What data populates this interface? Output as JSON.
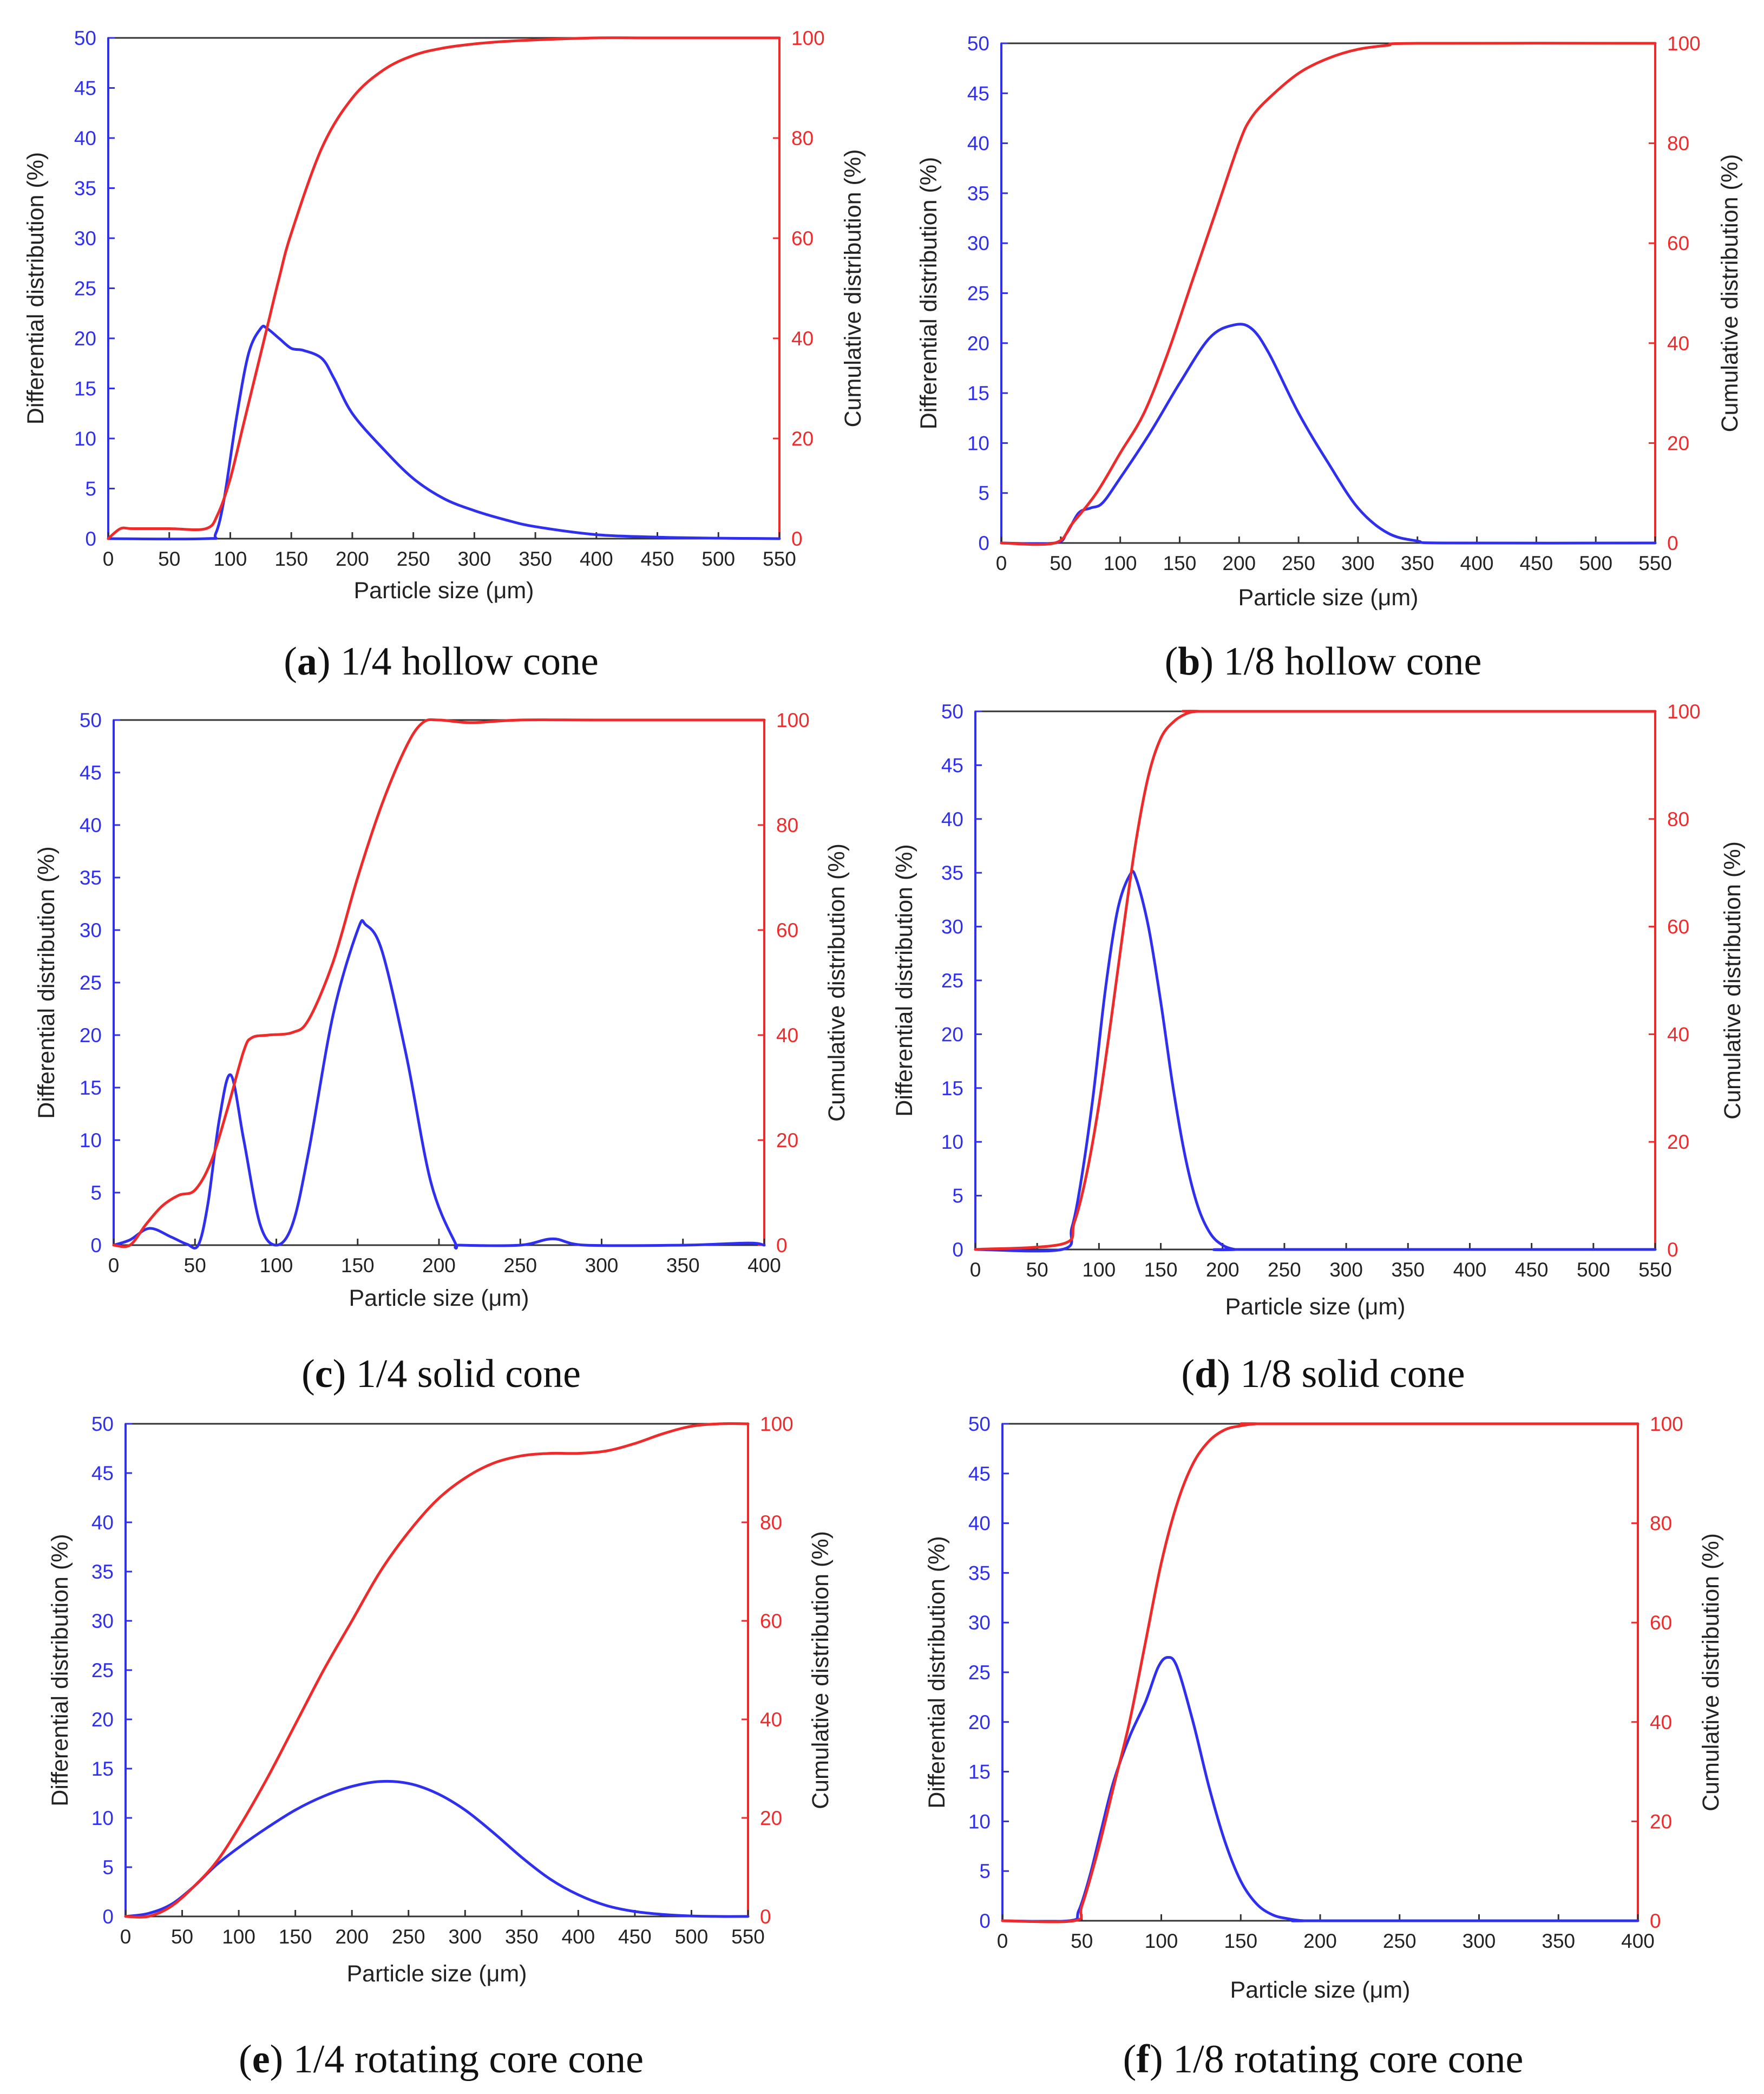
{
  "colors": {
    "differential": "#2f2ff0",
    "cumulative": "#ee2a2a",
    "frame": "#333333",
    "text": "#222222"
  },
  "chart_data": [
    {
      "id": "a",
      "type": "line",
      "caption_letter": "a",
      "caption_text": " 1/4 hollow cone",
      "xlabel": "Particle size (μm)",
      "ylabel_left": "Differential distribution (%)",
      "ylabel_right": "Cumulative distribution (%)",
      "xlim": [
        0,
        550
      ],
      "ylim_left": [
        0,
        50
      ],
      "ylim_right": [
        0,
        100
      ],
      "xticks": [
        0,
        50,
        100,
        150,
        200,
        250,
        300,
        350,
        400,
        450,
        500,
        550
      ],
      "yticks_left": [
        0,
        5,
        10,
        15,
        20,
        25,
        30,
        35,
        40,
        45,
        50
      ],
      "yticks_right": [
        0,
        20,
        40,
        60,
        80,
        100
      ],
      "series": [
        {
          "name": "Differential distribution",
          "axis": "left",
          "x": [
            0,
            80,
            88,
            95,
            105,
            115,
            125,
            130,
            140,
            150,
            160,
            175,
            185,
            200,
            225,
            250,
            275,
            300,
            325,
            350,
            400,
            450,
            500,
            550
          ],
          "y": [
            0,
            0,
            0.5,
            4,
            12,
            18.5,
            21,
            21,
            20,
            19,
            18.8,
            18,
            16,
            12.5,
            9,
            6,
            4,
            2.8,
            1.9,
            1.2,
            0.4,
            0.15,
            0.05,
            0
          ]
        },
        {
          "name": "Cumulative distribution",
          "axis": "right",
          "x": [
            0,
            10,
            20,
            50,
            80,
            90,
            100,
            110,
            120,
            130,
            140,
            150,
            175,
            200,
            225,
            250,
            275,
            300,
            325,
            350,
            400,
            450,
            550
          ],
          "y": [
            0,
            2,
            2,
            2,
            2,
            5,
            12,
            22,
            32,
            42,
            52,
            61,
            78,
            88,
            93.5,
            96.5,
            98,
            98.8,
            99.3,
            99.6,
            100,
            100,
            100
          ]
        }
      ]
    },
    {
      "id": "b",
      "type": "line",
      "caption_letter": "b",
      "caption_text": " 1/8 hollow cone",
      "xlabel": "Particle size (μm)",
      "ylabel_left": "Differential distribution (%)",
      "ylabel_right": "Cumulative distribution (%)",
      "xlim": [
        0,
        550
      ],
      "ylim_left": [
        0,
        50
      ],
      "ylim_right": [
        0,
        100
      ],
      "xticks": [
        0,
        50,
        100,
        150,
        200,
        250,
        300,
        350,
        400,
        450,
        500,
        550
      ],
      "yticks_left": [
        0,
        5,
        10,
        15,
        20,
        25,
        30,
        35,
        40,
        45,
        50
      ],
      "yticks_right": [
        0,
        20,
        40,
        60,
        80,
        100
      ],
      "series": [
        {
          "name": "Differential distribution",
          "axis": "left",
          "x": [
            0,
            45,
            55,
            65,
            75,
            85,
            100,
            125,
            150,
            175,
            195,
            210,
            225,
            250,
            275,
            300,
            325,
            350,
            375,
            550
          ],
          "y": [
            0,
            0,
            1,
            3,
            3.5,
            4,
            6.5,
            11,
            16,
            20.5,
            21.8,
            21.5,
            19,
            13,
            8,
            3.5,
            1,
            0.2,
            0,
            0
          ]
        },
        {
          "name": "Cumulative distribution",
          "axis": "right",
          "x": [
            0,
            45,
            60,
            80,
            100,
            120,
            140,
            160,
            180,
            200,
            210,
            225,
            250,
            275,
            300,
            325,
            350,
            550
          ],
          "y": [
            0,
            0,
            4,
            10,
            18,
            26,
            38,
            52,
            66,
            80,
            85,
            89,
            94,
            97,
            98.8,
            99.6,
            100,
            100
          ]
        }
      ]
    },
    {
      "id": "c",
      "type": "line",
      "caption_letter": "c",
      "caption_text": " 1/4 solid cone",
      "xlabel": "Particle size (μm)",
      "ylabel_left": "Differential distribution (%)",
      "ylabel_right": "Cumulative distribution (%)",
      "xlim": [
        0,
        400
      ],
      "ylim_left": [
        0,
        50
      ],
      "ylim_right": [
        0,
        100
      ],
      "xticks": [
        0,
        50,
        100,
        150,
        200,
        250,
        300,
        350,
        400
      ],
      "yticks_left": [
        0,
        5,
        10,
        15,
        20,
        25,
        30,
        35,
        40,
        45,
        50
      ],
      "yticks_right": [
        0,
        20,
        40,
        60,
        80,
        100
      ],
      "series": [
        {
          "name": "Differential distribution",
          "axis": "left",
          "x": [
            0,
            10,
            22,
            35,
            45,
            52,
            58,
            65,
            72,
            80,
            90,
            100,
            110,
            120,
            135,
            150,
            155,
            165,
            180,
            195,
            210,
            213,
            250,
            270,
            290,
            350,
            390,
            400
          ],
          "y": [
            0,
            0.5,
            1.6,
            0.8,
            0.1,
            0,
            4,
            12,
            16.2,
            10,
            2,
            0,
            2,
            9,
            22,
            30,
            30.5,
            28,
            18,
            6,
            0.2,
            0,
            0,
            0.6,
            0,
            0,
            0.2,
            0
          ]
        },
        {
          "name": "Cumulative distribution",
          "axis": "right",
          "x": [
            0,
            10,
            20,
            30,
            40,
            50,
            60,
            70,
            80,
            85,
            95,
            110,
            120,
            135,
            150,
            165,
            180,
            190,
            200,
            220,
            250,
            300,
            400
          ],
          "y": [
            0,
            0,
            4,
            7.5,
            9.5,
            10.5,
            16,
            26,
            37,
            39.5,
            40,
            40.5,
            43,
            54,
            70,
            84,
            95,
            99.5,
            100,
            99.5,
            100,
            100,
            100
          ]
        }
      ]
    },
    {
      "id": "d",
      "type": "line",
      "caption_letter": "d",
      "caption_text": " 1/8 solid cone",
      "xlabel": "Particle size (μm)",
      "ylabel_left": "Differential distribution (%)",
      "ylabel_right": "Cumulative distribution (%)",
      "xlim": [
        0,
        550
      ],
      "ylim_left": [
        0,
        50
      ],
      "ylim_right": [
        0,
        100
      ],
      "xticks": [
        0,
        50,
        100,
        150,
        200,
        250,
        300,
        350,
        400,
        450,
        500,
        550
      ],
      "yticks_left": [
        0,
        5,
        10,
        15,
        20,
        25,
        30,
        35,
        40,
        45,
        50
      ],
      "yticks_right": [
        0,
        20,
        40,
        60,
        80,
        100
      ],
      "series": [
        {
          "name": "Differential distribution",
          "axis": "left",
          "x": [
            0,
            70,
            78,
            85,
            95,
            105,
            115,
            125,
            130,
            140,
            150,
            160,
            170,
            180,
            190,
            200,
            210,
            220,
            550
          ],
          "y": [
            0,
            0,
            2,
            6,
            14,
            24,
            31.5,
            34.8,
            34.5,
            30,
            23,
            15,
            8.5,
            4,
            1.5,
            0.4,
            0,
            0,
            0
          ]
        },
        {
          "name": "Cumulative distribution",
          "axis": "right",
          "x": [
            0,
            70,
            80,
            90,
            100,
            110,
            120,
            130,
            140,
            150,
            160,
            170,
            180,
            200,
            550
          ],
          "y": [
            0,
            1,
            5,
            14,
            27,
            43,
            60,
            76,
            88,
            95,
            98,
            99.5,
            100,
            100,
            100
          ]
        }
      ]
    },
    {
      "id": "e",
      "type": "line",
      "caption_letter": "e",
      "caption_text": " 1/4 rotating core cone",
      "xlabel": "Particle size (μm)",
      "ylabel_left": "Differential distribution (%)",
      "ylabel_right": "Cumulative distribution (%)",
      "xlim": [
        0,
        550
      ],
      "ylim_left": [
        0,
        50
      ],
      "ylim_right": [
        0,
        100
      ],
      "xticks": [
        0,
        50,
        100,
        150,
        200,
        250,
        300,
        350,
        400,
        450,
        500,
        550
      ],
      "yticks_left": [
        0,
        5,
        10,
        15,
        20,
        25,
        30,
        35,
        40,
        45,
        50
      ],
      "yticks_right": [
        0,
        20,
        40,
        60,
        80,
        100
      ],
      "series": [
        {
          "name": "Differential distribution",
          "axis": "left",
          "x": [
            0,
            20,
            40,
            60,
            80,
            100,
            125,
            150,
            175,
            200,
            225,
            250,
            275,
            300,
            325,
            350,
            375,
            400,
            425,
            450,
            475,
            500,
            525,
            550
          ],
          "y": [
            0,
            0.3,
            1.2,
            3,
            5.2,
            7,
            9,
            10.8,
            12.2,
            13.2,
            13.7,
            13.5,
            12.5,
            10.8,
            8.5,
            6,
            3.8,
            2.2,
            1.1,
            0.5,
            0.2,
            0.05,
            0,
            0
          ]
        },
        {
          "name": "Cumulative distribution",
          "axis": "right",
          "x": [
            0,
            20,
            40,
            60,
            80,
            100,
            125,
            150,
            175,
            200,
            225,
            250,
            275,
            300,
            325,
            350,
            375,
            400,
            425,
            450,
            475,
            500,
            525,
            550
          ],
          "y": [
            0,
            0,
            2,
            6,
            11,
            18,
            28,
            39,
            50,
            60,
            70,
            78,
            84.5,
            89,
            92,
            93.5,
            94,
            94,
            94.5,
            96,
            98,
            99.5,
            100,
            100
          ]
        }
      ]
    },
    {
      "id": "f",
      "type": "line",
      "caption_letter": "f",
      "caption_text": " 1/8 rotating core cone",
      "xlabel": "Particle size (μm)",
      "ylabel_left": "Differential distribution (%)",
      "ylabel_right": "Cumulative distribution (%)",
      "xlim": [
        0,
        400
      ],
      "ylim_left": [
        0,
        50
      ],
      "ylim_right": [
        0,
        100
      ],
      "xticks": [
        0,
        50,
        100,
        150,
        200,
        250,
        300,
        350,
        400
      ],
      "yticks_left": [
        0,
        5,
        10,
        15,
        20,
        25,
        30,
        35,
        40,
        45,
        50
      ],
      "yticks_right": [
        0,
        20,
        40,
        60,
        80,
        100
      ],
      "series": [
        {
          "name": "Differential distribution",
          "axis": "left",
          "x": [
            0,
            42,
            48,
            55,
            62,
            70,
            80,
            90,
            98,
            104,
            110,
            120,
            130,
            140,
            150,
            160,
            170,
            180,
            190,
            200,
            400
          ],
          "y": [
            0,
            0,
            1,
            4.5,
            9,
            14,
            18.5,
            22,
            25.5,
            26.5,
            25.5,
            20,
            13.5,
            8,
            4,
            1.7,
            0.6,
            0.2,
            0,
            0,
            0
          ]
        },
        {
          "name": "Cumulative distribution",
          "axis": "right",
          "x": [
            0,
            45,
            50,
            60,
            70,
            80,
            90,
            100,
            110,
            120,
            130,
            140,
            150,
            160,
            170,
            400
          ],
          "y": [
            0,
            0,
            3,
            14,
            27,
            40,
            56,
            72,
            84,
            92,
            96.5,
            98.8,
            99.6,
            100,
            100,
            100
          ]
        }
      ]
    }
  ]
}
